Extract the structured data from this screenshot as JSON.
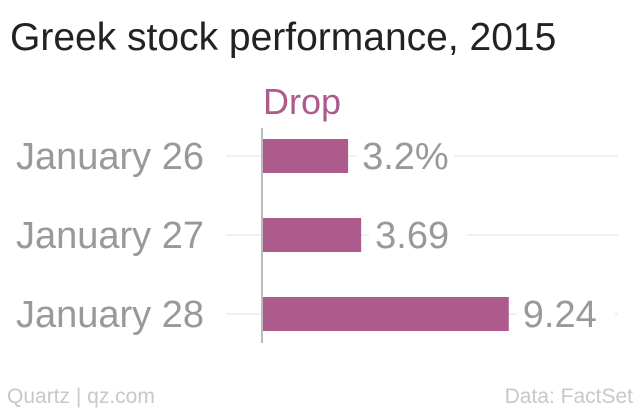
{
  "chart_data": {
    "type": "bar",
    "orientation": "horizontal",
    "title": "Greek stock performance, 2015",
    "categories": [
      "January 26",
      "January 27",
      "January 28"
    ],
    "series": [
      {
        "name": "Drop",
        "values": [
          3.2,
          3.69,
          9.24
        ],
        "labels": [
          "3.2%",
          "3.69",
          "9.24"
        ]
      }
    ],
    "xlim": [
      0,
      10
    ],
    "grid": true,
    "legend": "top"
  },
  "footer": {
    "left": "Quartz | qz.com",
    "right": "Data: FactSet"
  },
  "colors": {
    "bar": "#AD5A8C",
    "series_label": "#AD5A8C",
    "title": "#222222",
    "category": "#999999",
    "value_label": "#999999",
    "grid": "#ECECEC",
    "baseline": "#BBBBBB",
    "footer": "#C8C8C8"
  }
}
